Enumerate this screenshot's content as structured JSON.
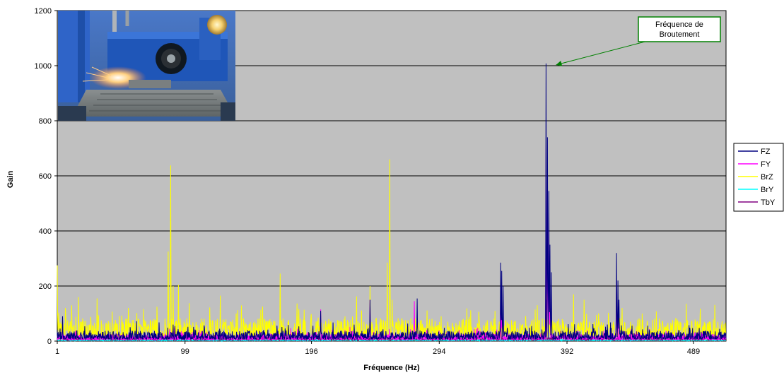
{
  "chart_data": {
    "type": "line",
    "xlabel": "Fréquence (Hz)",
    "ylabel": "Gain",
    "xlim": [
      1,
      514
    ],
    "ylim": [
      0,
      1200
    ],
    "y_ticks": [
      0,
      200,
      400,
      600,
      800,
      1000,
      1200
    ],
    "x_tick_labels": [
      "1",
      "99",
      "196",
      "294",
      "392",
      "489"
    ],
    "x_tick_values": [
      1,
      99,
      196,
      294,
      392,
      489
    ],
    "grid": "horizontal",
    "legend_position": "right",
    "colors": {
      "plot_background": "#c0c0c0",
      "gridline": "#000000"
    },
    "annotation": {
      "text_line1": "Fréquence de",
      "text_line2": "Broutement",
      "x": 376,
      "y": 1008,
      "border_color": "#008000",
      "arrow_color": "#008000"
    },
    "inset_image": "grinding-machine-photo",
    "series": [
      {
        "name": "FZ",
        "color": "#000080",
        "noise_level": 50,
        "peaks": [
          [
            5,
            90
          ],
          [
            90,
            60
          ],
          [
            203,
            110
          ],
          [
            241,
            150
          ],
          [
            277,
            155
          ],
          [
            341,
            285
          ],
          [
            342,
            255
          ],
          [
            343,
            200
          ],
          [
            376,
            1008
          ],
          [
            377,
            740
          ],
          [
            378,
            545
          ],
          [
            379,
            350
          ],
          [
            380,
            250
          ],
          [
            430,
            320
          ],
          [
            431,
            220
          ],
          [
            432,
            150
          ]
        ]
      },
      {
        "name": "FY",
        "color": "#ff00ff",
        "noise_level": 35,
        "peaks": [
          [
            203,
            115
          ],
          [
            241,
            150
          ],
          [
            275,
            145
          ],
          [
            341,
            200
          ],
          [
            342,
            150
          ],
          [
            376,
            710
          ],
          [
            377,
            550
          ],
          [
            378,
            400
          ],
          [
            379,
            200
          ],
          [
            430,
            220
          ],
          [
            431,
            150
          ]
        ]
      },
      {
        "name": "BrZ",
        "color": "#ffff00",
        "noise_level": 110,
        "peaks": [
          [
            1,
            275
          ],
          [
            12,
            130
          ],
          [
            86,
            325
          ],
          [
            88,
            638
          ],
          [
            90,
            200
          ],
          [
            94,
            205
          ],
          [
            126,
            165
          ],
          [
            172,
            245
          ],
          [
            241,
            200
          ],
          [
            254,
            285
          ],
          [
            256,
            660
          ],
          [
            258,
            150
          ],
          [
            376,
            170
          ],
          [
            397,
            170
          ],
          [
            405,
            150
          ]
        ]
      },
      {
        "name": "BrY",
        "color": "#00ffff",
        "noise_level": 8,
        "peaks": []
      },
      {
        "name": "TbY",
        "color": "#800080",
        "noise_level": 25,
        "peaks": [
          [
            341,
            120
          ],
          [
            376,
            150
          ]
        ]
      }
    ]
  }
}
